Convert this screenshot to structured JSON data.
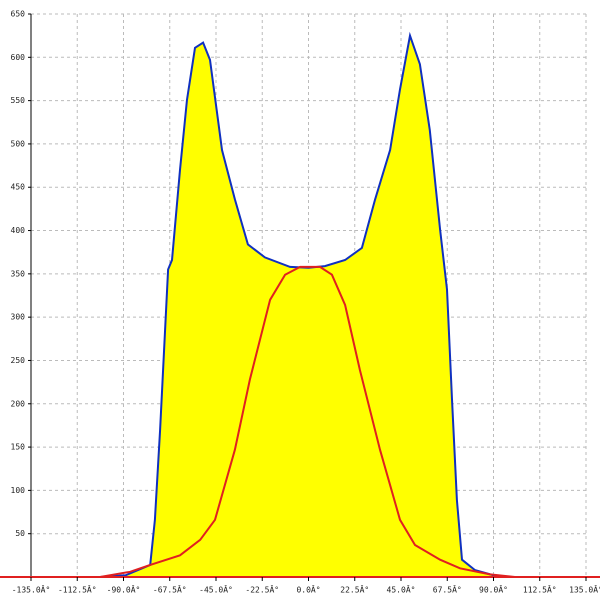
{
  "chart_data": {
    "type": "area-line",
    "xlim": [
      -135,
      135
    ],
    "ylim": [
      0,
      650
    ],
    "xticks": [
      {
        "value": -135,
        "label": "-135.0Â°"
      },
      {
        "value": -112.5,
        "label": "-112.5Â°"
      },
      {
        "value": -90,
        "label": "-90.0Â°"
      },
      {
        "value": -67.5,
        "label": "-67.5Â°"
      },
      {
        "value": -45,
        "label": "-45.0Â°"
      },
      {
        "value": -22.5,
        "label": "-22.5Â°"
      },
      {
        "value": 0,
        "label": "0.0Â°"
      },
      {
        "value": 22.5,
        "label": "22.5Â°"
      },
      {
        "value": 45,
        "label": "45.0Â°"
      },
      {
        "value": 67.5,
        "label": "67.5Â°"
      },
      {
        "value": 90,
        "label": "90.0Â°"
      },
      {
        "value": 112.5,
        "label": "112.5Â°"
      },
      {
        "value": 135,
        "label": "135.0Â°"
      }
    ],
    "yticks": [
      50,
      100,
      150,
      200,
      250,
      300,
      350,
      400,
      450,
      500,
      550,
      600,
      650
    ],
    "grid": true,
    "series": [
      {
        "color": "#1030c0",
        "fill": "#ffff00",
        "x": [
          -101.4,
          -89,
          -77,
          -74.7,
          -72.2,
          -68.3,
          -66.4,
          -62.5,
          -59.1,
          -55.2,
          -51.3,
          -47.9,
          -42.1,
          -35.8,
          -29.5,
          -21.2,
          -9,
          0,
          8,
          17.8,
          26,
          32.4,
          39.7,
          44.5,
          49.4,
          54.2,
          59,
          64,
          67.4,
          69.8,
          72.2,
          74.7,
          81,
          93
        ],
        "values": [
          0,
          2,
          14,
          66,
          170,
          355,
          366,
          470,
          551,
          611,
          617,
          597,
          493,
          436,
          384,
          369,
          358,
          357,
          359,
          366,
          380,
          436,
          493,
          563,
          625,
          592,
          516,
          401,
          332,
          205,
          89,
          20,
          8,
          0
        ]
      },
      {
        "color": "#e02020",
        "x": [
          -101.4,
          -86.8,
          -77,
          -62.5,
          -52.7,
          -45.5,
          -35.8,
          -28.5,
          -18.7,
          -11.4,
          -4.1,
          5.6,
          11.4,
          17.8,
          25,
          34.8,
          44.5,
          51.8,
          64,
          73.7,
          88.3,
          100.4
        ],
        "values": [
          0,
          6,
          14,
          25,
          43,
          66,
          147,
          228,
          320,
          349,
          358,
          358,
          349,
          314,
          239,
          147,
          66,
          37,
          20,
          10,
          3,
          0
        ]
      }
    ]
  }
}
